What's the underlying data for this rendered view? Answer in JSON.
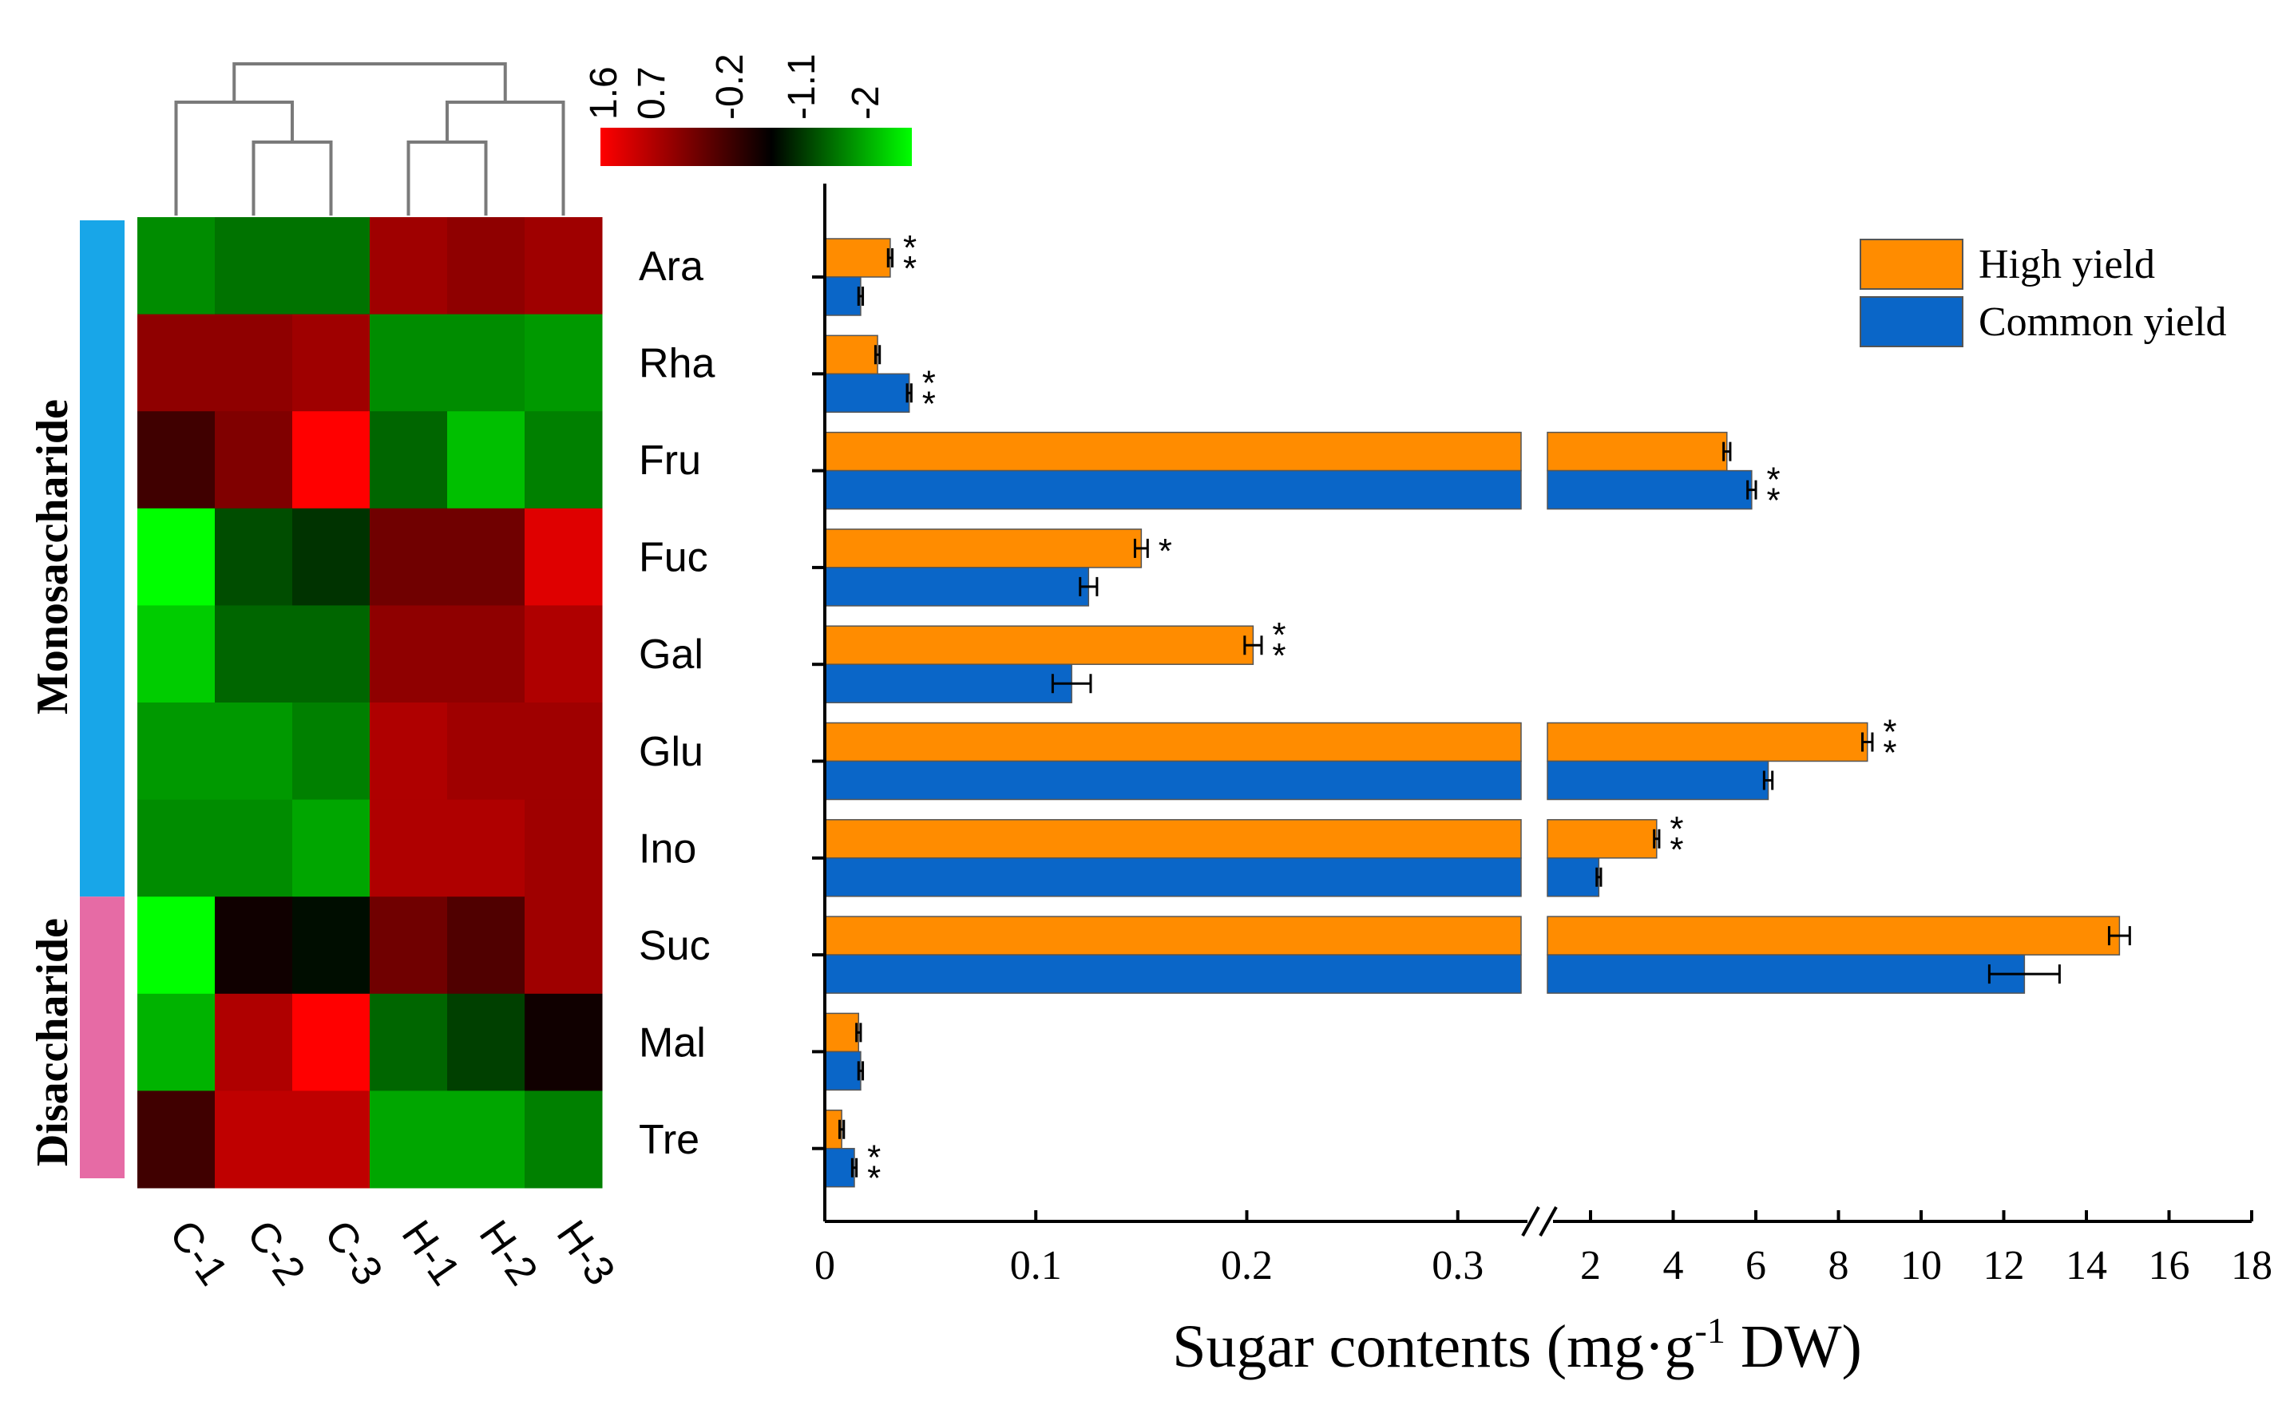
{
  "colors": {
    "high": "#FF8C00",
    "common": "#0A66C8",
    "mono_bar": "#18A6E8",
    "di_bar": "#E66BA5",
    "scale_high": "#FF0000",
    "scale_mid": "#000000",
    "scale_low": "#00FF00"
  },
  "heatmap": {
    "columns": [
      "C-1",
      "C-2",
      "C-3",
      "H-1",
      "H-2",
      "H-3"
    ],
    "rows": [
      "Ara",
      "Rha",
      "Fru",
      "Fuc",
      "Gal",
      "Glu",
      "Ino",
      "Suc",
      "Mal",
      "Tre"
    ],
    "values": [
      [
        -1.1,
        -0.9,
        -0.9,
        1.0,
        0.9,
        1.0
      ],
      [
        0.9,
        0.9,
        1.0,
        -1.1,
        -1.1,
        -1.2
      ],
      [
        0.4,
        0.8,
        1.6,
        -0.8,
        -1.5,
        -1.0
      ],
      [
        -2.0,
        -0.6,
        -0.4,
        0.7,
        0.7,
        1.4
      ],
      [
        -1.6,
        -0.8,
        -0.8,
        0.9,
        0.9,
        1.1
      ],
      [
        -1.2,
        -1.2,
        -1.0,
        1.1,
        1.0,
        1.0
      ],
      [
        -1.1,
        -1.1,
        -1.3,
        1.1,
        1.1,
        1.0
      ],
      [
        -2.2,
        0.1,
        -0.1,
        0.7,
        0.5,
        1.0
      ],
      [
        -1.4,
        1.1,
        1.6,
        -0.8,
        -0.5,
        0.1
      ],
      [
        0.4,
        1.2,
        1.2,
        -1.3,
        -1.3,
        -1.0
      ]
    ],
    "groups": [
      {
        "label": "Monosaccharide",
        "rows": 7
      },
      {
        "label": "Disaccharide",
        "rows": 3
      }
    ],
    "scale": {
      "ticks": [
        "1.6",
        "0.7",
        "-0.2",
        "-1.1",
        "-2"
      ],
      "min": -2,
      "max": 1.6
    },
    "dendrogram": "C-1 joins (C-2,C-3); H-1/H-2 pair joins H-3; top split separates C and H groups"
  },
  "chart_data": {
    "type": "bar",
    "orientation": "horizontal",
    "categories": [
      "Ara",
      "Rha",
      "Fru",
      "Fuc",
      "Gal",
      "Glu",
      "Ino",
      "Suc",
      "Mal",
      "Tre"
    ],
    "series": [
      {
        "name": "High yield",
        "values": [
          0.031,
          0.025,
          5.3,
          0.15,
          0.203,
          8.7,
          3.6,
          14.8,
          0.016,
          0.008
        ],
        "errors": [
          0.001,
          0.001,
          0.08,
          0.003,
          0.004,
          0.12,
          0.06,
          0.25,
          0.001,
          0.001
        ],
        "significance": [
          "**",
          "",
          "",
          "*",
          "**",
          "**",
          "**",
          "",
          "",
          ""
        ]
      },
      {
        "name": "Common yield",
        "values": [
          0.017,
          0.04,
          5.9,
          0.125,
          0.117,
          6.3,
          2.2,
          12.5,
          0.017,
          0.014
        ],
        "errors": [
          0.001,
          0.001,
          0.1,
          0.004,
          0.009,
          0.1,
          0.05,
          0.85,
          0.001,
          0.001
        ],
        "significance": [
          "",
          "**",
          "**",
          "",
          "",
          "",
          "",
          "",
          "",
          "**"
        ]
      }
    ],
    "x_axis": {
      "broken": true,
      "segment1": {
        "range": [
          0,
          0.33
        ],
        "ticks": [
          "0",
          "0.1",
          "0.2",
          "0.3"
        ]
      },
      "segment2": {
        "range": [
          1.5,
          18
        ],
        "ticks": [
          "2",
          "4",
          "6",
          "8",
          "10",
          "12",
          "14",
          "16",
          "18"
        ]
      }
    },
    "xlabel": "Sugar contents (mg·g",
    "xlabel_sup": "-1",
    "xlabel_tail": " DW)",
    "legend": {
      "position": "top-right",
      "entries": [
        "High yield",
        "Common yield"
      ]
    }
  }
}
